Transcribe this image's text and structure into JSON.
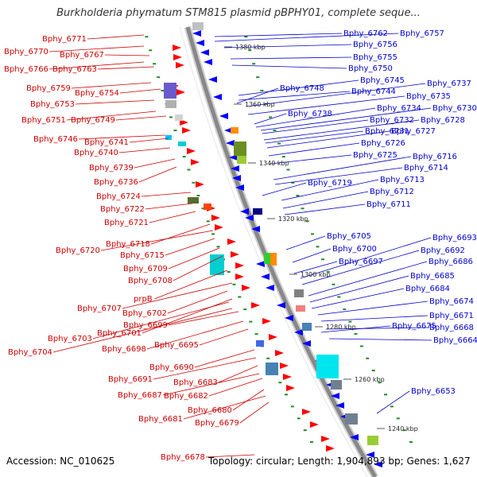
{
  "title": "Burkholderia phymatum STM815 plasmid pBPHY01, complete seque...",
  "footer": {
    "accession": "Accession: NC_010625",
    "topology": "Topology: circular; Length: 1,904,893 bp; Genes: 1,627"
  },
  "colors": {
    "left_labels": "#cc0000",
    "right_labels": "#0000cc",
    "forward_genes": "#ff0000",
    "reverse_genes": "#0000ff",
    "backbone": "#888888",
    "tick_marks": "#228b22"
  },
  "scale_labels": [
    "1380 kbp",
    "1360 kbp",
    "1340 kbp",
    "1320 kbp",
    "1300 kbp",
    "1280 kbp",
    "1260 kbp",
    "1240 kbp"
  ],
  "left_labels": [
    "Bphy_6771",
    "Bphy_6770",
    "Bphy_6767",
    "Bphy_6766",
    "Bphy_6763",
    "Bphy_6759",
    "Bphy_6754",
    "Bphy_6753",
    "Bphy_6751",
    "Bphy_6749",
    "Bphy_6746",
    "Bphy_6741",
    "Bphy_6740",
    "Bphy_6739",
    "Bphy_6736",
    "Bphy_6724",
    "Bphy_6722",
    "Bphy_6721",
    "Bphy_6718",
    "Bphy_6720",
    "Bphy_6715",
    "Bphy_6709",
    "Bphy_6708",
    "prpB",
    "Bphy_6707",
    "Bphy_6702",
    "Bphy_6701",
    "Bphy_6699",
    "Bphy_6703",
    "Bphy_6698",
    "Bphy_6695",
    "Bphy_6704",
    "Bphy_6690",
    "Bphy_6691",
    "Bphy_6683",
    "Bphy_6687",
    "Bphy_6682",
    "Bphy_6680",
    "Bphy_6681",
    "Bphy_6679",
    "Bphy_6678"
  ],
  "right_labels": [
    "Bphy_6762",
    "Bphy_6757",
    "Bphy_6756",
    "Bphy_6755",
    "Bphy_6750",
    "Bphy_6745",
    "Bphy_6748",
    "Bphy_6744",
    "Bphy_6737",
    "Bphy_6735",
    "Bphy_6738",
    "Bphy_6734",
    "Bphy_6730",
    "Bphy_6732",
    "Bphy_6728",
    "Bphy_6731",
    "Bphy_6727",
    "Bphy_6726",
    "Bphy_6725",
    "Bphy_6716",
    "Bphy_6714",
    "Bphy_6719",
    "Bphy_6713",
    "Bphy_6712",
    "Bphy_6711",
    "Bphy_6705",
    "Bphy_6693",
    "Bphy_6700",
    "Bphy_6692",
    "Bphy_6697",
    "Bphy_6686",
    "Bphy_6685",
    "Bphy_6684",
    "Bphy_6674",
    "Bphy_6671",
    "Bphy_6675",
    "Bphy_6668",
    "Bphy_6664",
    "Bphy_6653"
  ]
}
